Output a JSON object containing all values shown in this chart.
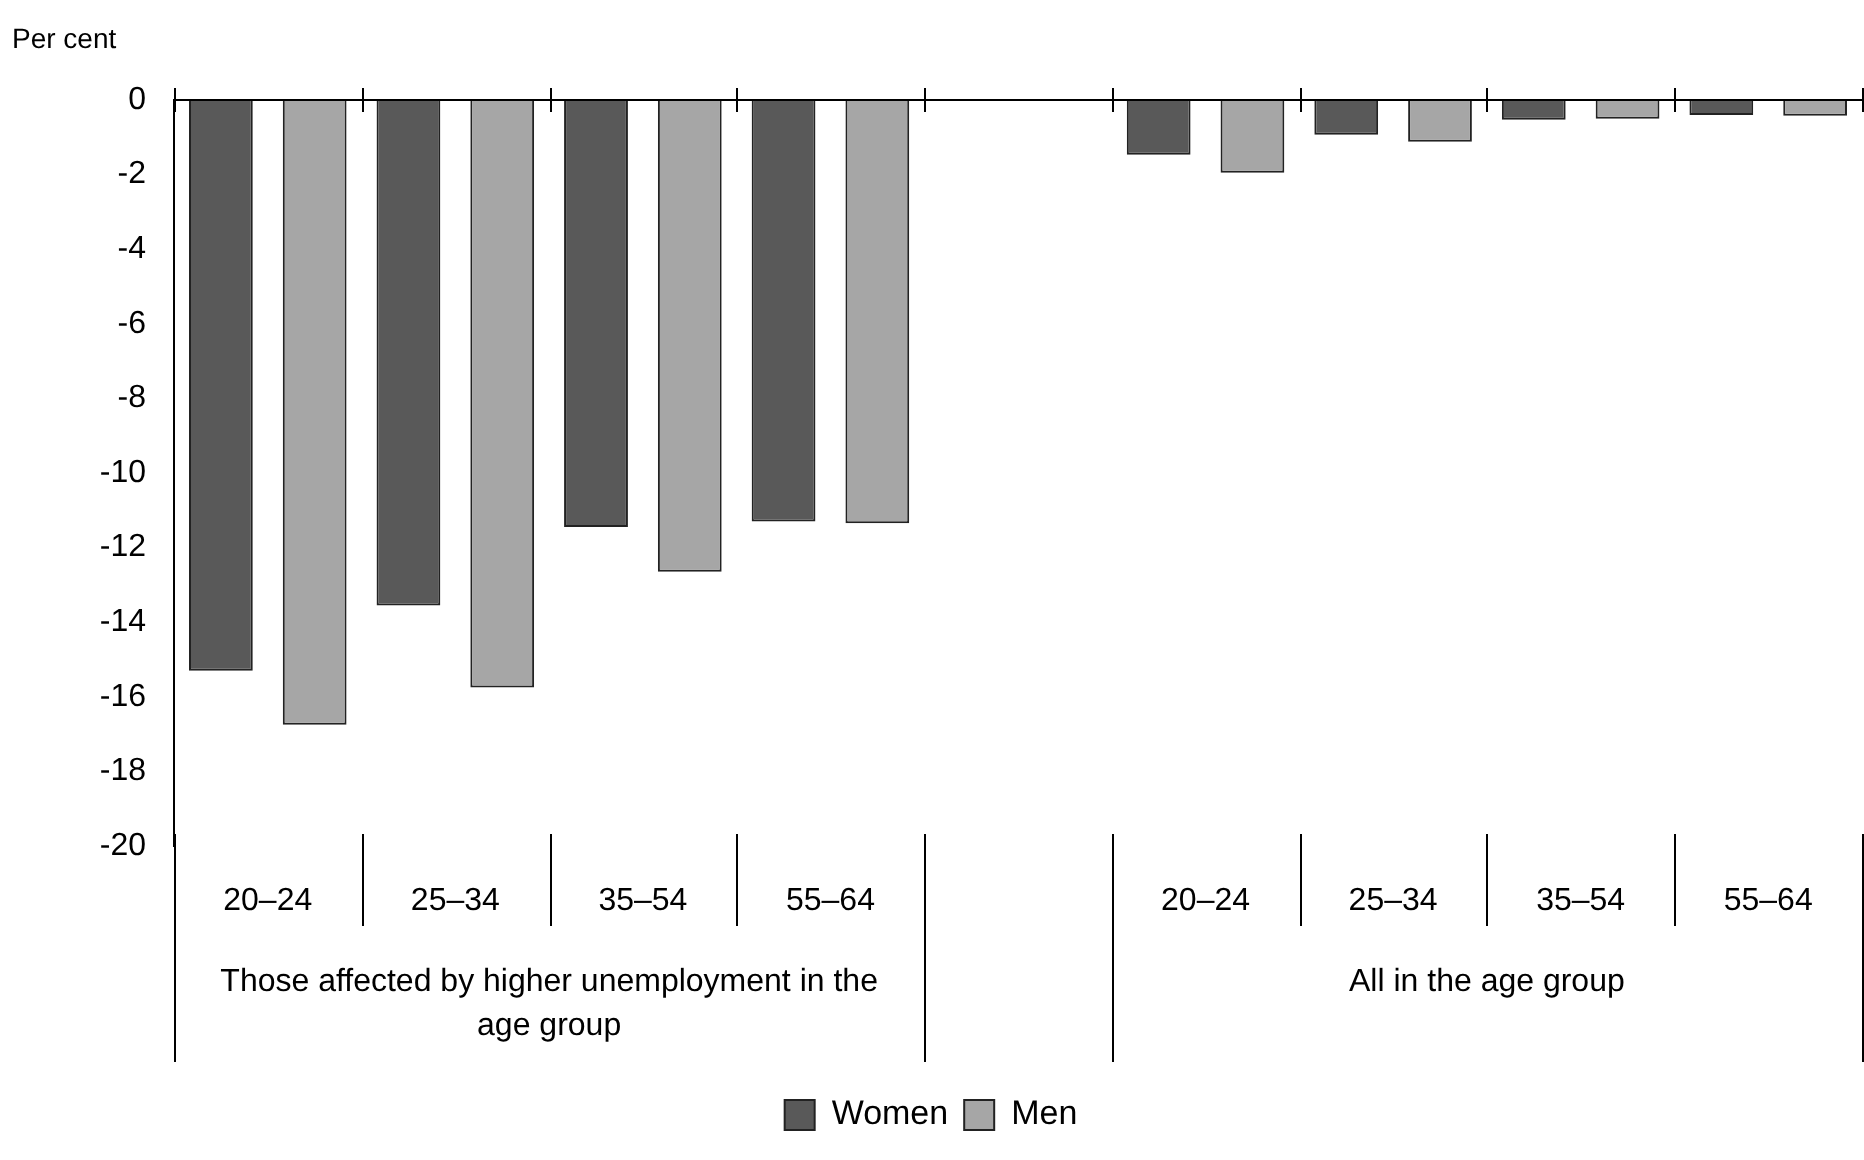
{
  "chart_data": {
    "type": "bar",
    "ylabel": "Per cent",
    "categories": [
      "20–24",
      "25–34",
      "35–54",
      "55–64",
      null,
      "20–24",
      "25–34",
      "35–54",
      "55–64"
    ],
    "series": [
      {
        "name": "Women",
        "color": "#595959",
        "values": [
          -15.3,
          -13.55,
          -11.45,
          -11.3,
          null,
          -1.47,
          -0.93,
          -0.53,
          -0.4
        ]
      },
      {
        "name": "Men",
        "color": "#a6a6a6",
        "values": [
          -16.75,
          -15.75,
          -12.65,
          -11.35,
          null,
          -1.95,
          -1.12,
          -0.5,
          -0.42
        ]
      }
    ],
    "ylim": [
      -20,
      0
    ],
    "yticks": [
      0,
      -2,
      -4,
      -6,
      -8,
      -10,
      -12,
      -14,
      -16,
      -18,
      -20
    ],
    "annotations": [
      "Those affected by higher unemployment in the age group",
      "All in the age group"
    ],
    "grid": false,
    "legend": "bottom"
  }
}
